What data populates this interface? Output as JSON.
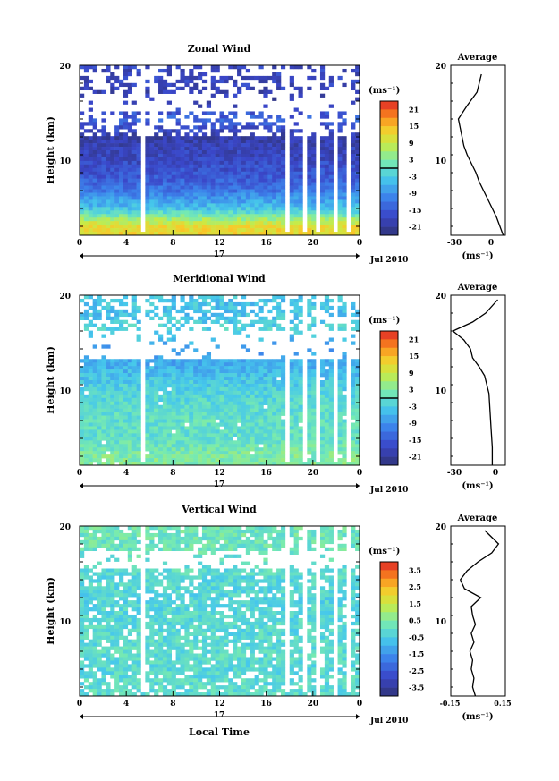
{
  "panels": [
    {
      "title": "Zonal Wind",
      "ylabel": "Height (km)",
      "yticks": [
        "20",
        "10"
      ],
      "xticks": [
        "0",
        "4",
        "8",
        "12",
        "16",
        "20",
        "0"
      ],
      "day_label": "17",
      "month_label": "Jul 2010",
      "cbar_unit": "(ms⁻¹)",
      "cbar_ticks": [
        "21",
        "15",
        "9",
        "3",
        "-3",
        "-9",
        "-15",
        "-21"
      ],
      "avg_title": "Average",
      "avg_yticks": [
        "20",
        "10"
      ],
      "avg_xticks": [
        "-30",
        "0"
      ],
      "avg_xlabel": "(ms⁻¹)"
    },
    {
      "title": "Meridional Wind",
      "ylabel": "Height (km)",
      "yticks": [
        "20",
        "10"
      ],
      "xticks": [
        "0",
        "4",
        "8",
        "12",
        "16",
        "20",
        "0"
      ],
      "day_label": "17",
      "month_label": "Jul 2010",
      "cbar_unit": "(ms⁻¹)",
      "cbar_ticks": [
        "21",
        "15",
        "9",
        "3",
        "-3",
        "-9",
        "-15",
        "-21"
      ],
      "avg_title": "Average",
      "avg_yticks": [
        "20",
        "10"
      ],
      "avg_xticks": [
        "-30",
        "0"
      ],
      "avg_xlabel": "(ms⁻¹)"
    },
    {
      "title": "Vertical Wind",
      "ylabel": "Height (km)",
      "yticks": [
        "20",
        "10"
      ],
      "xticks": [
        "0",
        "4",
        "8",
        "12",
        "16",
        "20",
        "0"
      ],
      "day_label": "17",
      "month_label": "Jul 2010",
      "cbar_unit": "(ms⁻¹)",
      "cbar_ticks": [
        "3.5",
        "2.5",
        "1.5",
        "0.5",
        "-0.5",
        "-1.5",
        "-2.5",
        "-3.5"
      ],
      "avg_title": "Average",
      "avg_yticks": [
        "20",
        "10"
      ],
      "avg_xticks": [
        "-0.15",
        "0",
        "0.15"
      ],
      "avg_xlabel": "(ms⁻¹)"
    }
  ],
  "xlabel": "Local Time",
  "chart_data": [
    {
      "type": "heatmap",
      "title": "Zonal Wind",
      "xlabel": "",
      "ylabel": "Height (km)",
      "xlim": [
        0,
        24
      ],
      "ylim": [
        1,
        20
      ],
      "clim": [
        -24,
        24
      ],
      "description": "height-time section of zonal wind",
      "profile_by_height": {
        "height_km": [
          2,
          4,
          6,
          8,
          10,
          12,
          14,
          16,
          18
        ],
        "value": [
          12,
          -4,
          -12,
          -16,
          -18,
          -20,
          -14,
          -20,
          -18
        ]
      }
    },
    {
      "type": "line",
      "title": "Average",
      "xlim": [
        -40,
        10
      ],
      "ylim": [
        1,
        20
      ],
      "x": [
        8,
        5,
        2,
        -2,
        -6,
        -10,
        -14,
        -17,
        -21,
        -25,
        -28,
        -33,
        -25,
        -16,
        -12
      ],
      "y": [
        1,
        2,
        3,
        4,
        5,
        6,
        7,
        8,
        9,
        10,
        11,
        14,
        15.5,
        17,
        19
      ]
    },
    {
      "type": "heatmap",
      "title": "Meridional Wind",
      "xlabel": "",
      "ylabel": "Height (km)",
      "xlim": [
        0,
        24
      ],
      "ylim": [
        1,
        20
      ],
      "clim": [
        -24,
        24
      ],
      "profile_by_height": {
        "height_km": [
          2,
          4,
          6,
          8,
          10,
          12,
          14,
          16,
          18
        ],
        "value": [
          3,
          0,
          0,
          -1,
          -3,
          -6,
          -8,
          -2,
          -4
        ]
      }
    },
    {
      "type": "line",
      "title": "Average",
      "xlim": [
        -40,
        10
      ],
      "ylim": [
        1,
        20
      ],
      "x": [
        -2,
        -2,
        -3,
        -4,
        -5,
        -9,
        -14,
        -20,
        -22,
        -28,
        -38,
        -20,
        -8,
        3
      ],
      "y": [
        1,
        3,
        5,
        7,
        9,
        11,
        12,
        13,
        14,
        15,
        16,
        17,
        18,
        19.5
      ]
    },
    {
      "type": "heatmap",
      "title": "Vertical Wind",
      "xlabel": "Local Time",
      "ylabel": "Height (km)",
      "xlim": [
        0,
        24
      ],
      "ylim": [
        1,
        20
      ],
      "clim": [
        -4,
        4
      ],
      "profile_by_height": {
        "height_km": [
          2,
          4,
          6,
          8,
          10,
          12,
          14,
          16,
          18
        ],
        "value": [
          -0.1,
          -0.2,
          -0.1,
          -0.2,
          -0.2,
          -0.3,
          -0.2,
          0.0,
          0.2
        ]
      }
    },
    {
      "type": "line",
      "title": "Average",
      "xlim": [
        -0.2,
        0.2
      ],
      "ylim": [
        1,
        20
      ],
      "x": [
        -0.02,
        -0.04,
        -0.03,
        -0.05,
        -0.04,
        -0.06,
        -0.03,
        -0.05,
        -0.02,
        -0.04,
        -0.05,
        0.02,
        -0.1,
        -0.13,
        -0.08,
        0.0,
        0.1,
        0.15,
        0.05
      ],
      "y": [
        1,
        2,
        3,
        4,
        5,
        6,
        7,
        8,
        9,
        10,
        11,
        12,
        13,
        14,
        15,
        16,
        17,
        18,
        19.5
      ]
    }
  ]
}
